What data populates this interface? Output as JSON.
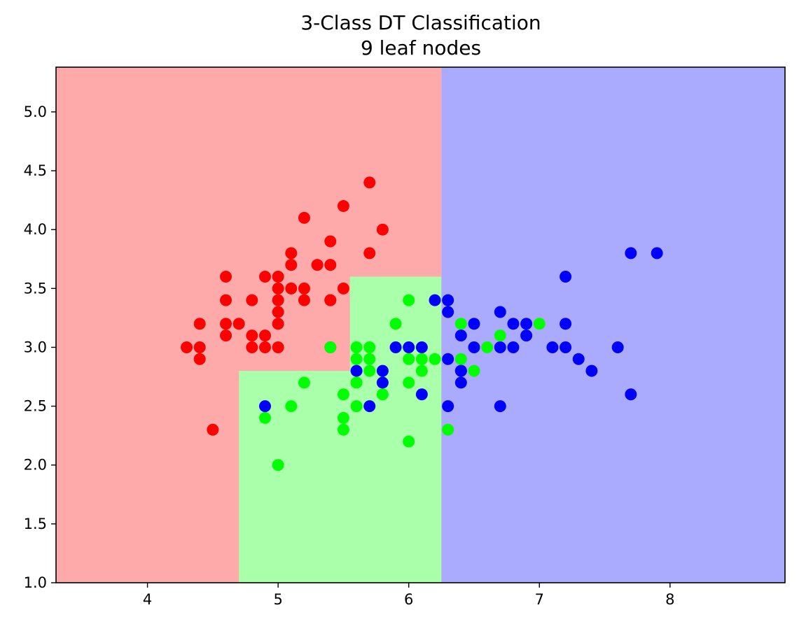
{
  "chart_data": {
    "type": "scatter",
    "title": "3-Class DT Classification",
    "subtitle": "9 leaf nodes",
    "xlabel": "",
    "ylabel": "",
    "xlim": [
      3.3,
      8.88
    ],
    "ylim": [
      1.0,
      5.38
    ],
    "xticks": [
      4,
      5,
      6,
      7,
      8
    ],
    "yticks": [
      1.0,
      1.5,
      2.0,
      2.5,
      3.0,
      3.5,
      4.0,
      4.5,
      5.0
    ],
    "xtick_labels": [
      "4",
      "5",
      "6",
      "7",
      "8"
    ],
    "ytick_labels": [
      "1.0",
      "1.5",
      "2.0",
      "2.5",
      "3.0",
      "3.5",
      "4.0",
      "4.5",
      "5.0"
    ],
    "grid": false,
    "legend": "none",
    "colors": {
      "region_red": "#ffaaaa",
      "region_green": "#aaffaa",
      "region_blue": "#aaaaff",
      "point_red": "#ff0000",
      "point_green": "#00ff00",
      "point_blue": "#0000ff"
    },
    "regions": [
      {
        "class": "red",
        "x": [
          3.3,
          6.25
        ],
        "y": [
          1.0,
          5.38
        ]
      },
      {
        "class": "green",
        "x": [
          4.7,
          6.25
        ],
        "y": [
          1.0,
          2.8
        ]
      },
      {
        "class": "green",
        "x": [
          5.55,
          6.25
        ],
        "y": [
          2.8,
          3.6
        ]
      },
      {
        "class": "blue",
        "x": [
          6.25,
          8.88
        ],
        "y": [
          1.0,
          5.38
        ]
      }
    ],
    "series": [
      {
        "class": "red",
        "x": [
          5.7,
          5.5,
          5.2,
          5.8,
          5.4,
          5.1,
          5.7,
          5.1,
          5.4,
          5.3,
          4.6,
          4.9,
          5.0,
          5.0,
          5.2,
          5.5,
          4.6,
          5.0,
          5.4,
          5.2,
          4.4,
          4.8,
          4.6,
          4.6,
          4.7,
          5.0,
          5.4,
          4.3,
          4.4,
          4.8,
          4.8,
          4.9,
          4.9,
          5.0,
          4.4,
          4.5,
          5.0,
          5.1,
          5.4
        ],
        "y": [
          4.4,
          4.2,
          4.1,
          4.0,
          3.9,
          3.8,
          3.8,
          3.7,
          3.7,
          3.7,
          3.6,
          3.6,
          3.6,
          3.5,
          3.5,
          3.5,
          3.4,
          3.4,
          3.4,
          3.4,
          3.2,
          3.4,
          3.2,
          3.1,
          3.2,
          3.3,
          3.0,
          3.0,
          3.0,
          3.1,
          3.0,
          3.1,
          3.0,
          3.2,
          2.9,
          2.3,
          3.0,
          3.5,
          3.4
        ]
      },
      {
        "class": "green",
        "x": [
          6.0,
          5.9,
          6.4,
          5.4,
          5.6,
          5.7,
          5.6,
          5.7,
          6.0,
          6.1,
          6.2,
          6.4,
          5.7,
          5.8,
          6.1,
          6.5,
          5.2,
          5.6,
          6.0,
          5.5,
          5.6,
          5.1,
          4.9,
          5.5,
          5.5,
          6.3,
          6.0,
          5.0,
          6.7,
          6.6,
          7.0
        ],
        "y": [
          3.4,
          3.2,
          3.2,
          3.0,
          3.0,
          3.0,
          2.9,
          2.9,
          2.9,
          2.9,
          2.9,
          2.9,
          2.8,
          2.6,
          2.8,
          2.8,
          2.7,
          2.7,
          2.7,
          2.6,
          2.5,
          2.5,
          2.4,
          2.4,
          2.3,
          2.3,
          2.2,
          2.0,
          3.1,
          3.0,
          3.2
        ]
      },
      {
        "class": "blue",
        "x": [
          7.7,
          7.9,
          7.2,
          6.2,
          6.3,
          6.3,
          6.7,
          7.2,
          6.5,
          6.8,
          6.9,
          6.4,
          6.9,
          5.9,
          6.0,
          6.1,
          6.5,
          6.7,
          6.8,
          7.1,
          7.2,
          7.6,
          7.3,
          6.3,
          6.4,
          6.4,
          7.4,
          5.6,
          5.8,
          6.4,
          5.8,
          6.1,
          4.9,
          5.7,
          6.3,
          6.7,
          7.7
        ],
        "y": [
          3.8,
          3.8,
          3.6,
          3.4,
          3.4,
          3.3,
          3.3,
          3.2,
          3.2,
          3.2,
          3.2,
          3.1,
          3.1,
          3.0,
          3.0,
          3.0,
          3.0,
          3.0,
          3.0,
          3.0,
          3.0,
          3.0,
          2.9,
          2.9,
          2.8,
          2.8,
          2.8,
          2.8,
          2.8,
          2.7,
          2.7,
          2.6,
          2.5,
          2.5,
          2.5,
          2.5,
          2.6
        ]
      }
    ]
  }
}
